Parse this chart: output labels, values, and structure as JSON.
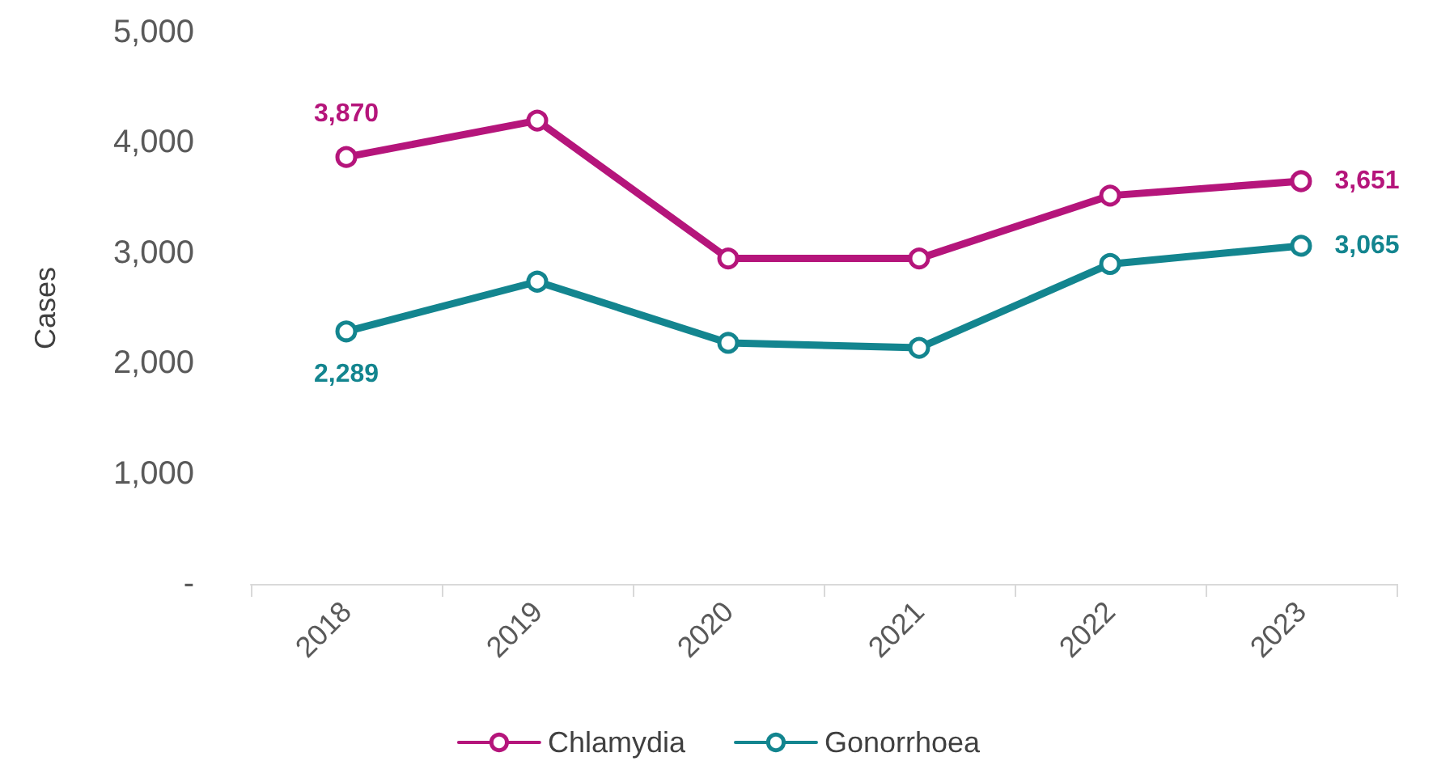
{
  "chart_data": {
    "type": "line",
    "ylabel": "Cases",
    "categories": [
      "2018",
      "2019",
      "2020",
      "2021",
      "2022",
      "2023"
    ],
    "series": [
      {
        "name": "Chlamydia",
        "color": "#b5157b",
        "values": [
          3870,
          4200,
          2950,
          2950,
          3520,
          3651
        ],
        "value_labels": [
          "3,870",
          null,
          null,
          null,
          null,
          "3,651"
        ]
      },
      {
        "name": "Gonorrhoea",
        "color": "#13858f",
        "values": [
          2289,
          2740,
          2185,
          2140,
          2900,
          3065
        ],
        "value_labels": [
          "2,289",
          null,
          null,
          null,
          null,
          "3,065"
        ]
      }
    ],
    "ylim": [
      0,
      5000
    ],
    "yticks": [
      {
        "value": 0,
        "label": "-"
      },
      {
        "value": 1000,
        "label": "1,000"
      },
      {
        "value": 2000,
        "label": "2,000"
      },
      {
        "value": 3000,
        "label": "3,000"
      },
      {
        "value": 4000,
        "label": "4,000"
      },
      {
        "value": 5000,
        "label": "5,000"
      }
    ],
    "grid": false,
    "legend": "bottom",
    "marker": "circle",
    "line_style": "solid"
  }
}
